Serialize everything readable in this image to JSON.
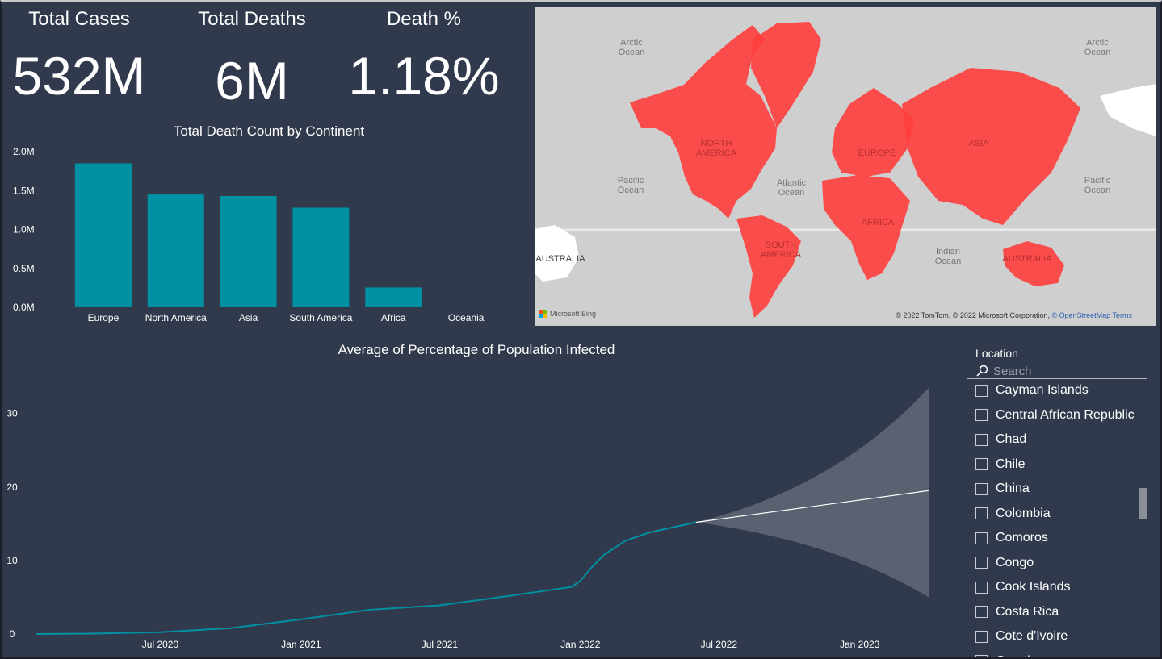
{
  "kpis": {
    "total_cases": {
      "title": "Total Cases",
      "value": "532M"
    },
    "total_deaths": {
      "title": "Total Deaths",
      "value": "6M"
    },
    "death_pct": {
      "title": "Death %",
      "value": "1.18%"
    }
  },
  "map": {
    "labels": {
      "arctic_ocean": "Arctic\nOcean",
      "pacific_ocean": "Pacific\nOcean",
      "atlantic_ocean": "Atlantic\nOcean",
      "indian_ocean": "Indian\nOcean",
      "north_america": "NORTH\nAMERICA",
      "south_america": "SOUTH\nAMERICA",
      "europe": "EUROPE",
      "asia": "ASIA",
      "africa": "AFRICA",
      "australia": "AUSTRALIA"
    },
    "bing_label": "Microsoft Bing",
    "credit": "© 2022 TomTom, © 2022 Microsoft Corporation,",
    "osm_link": "© OpenStreetMap",
    "terms_link": "Terms",
    "colors": {
      "water": "#cfcfcf",
      "land": "#ffffff",
      "highlight": "#ff3d3d"
    }
  },
  "slicer": {
    "title": "Location",
    "search_placeholder": "Search",
    "items": [
      "Cayman Islands",
      "Central African Republic",
      "Chad",
      "Chile",
      "China",
      "Colombia",
      "Comoros",
      "Congo",
      "Cook Islands",
      "Costa Rica",
      "Cote d'Ivoire",
      "Croatia"
    ]
  },
  "chart_data": [
    {
      "type": "bar",
      "title": "Total Death Count by Continent",
      "categories": [
        "Europe",
        "North America",
        "Asia",
        "South America",
        "Africa",
        "Oceania"
      ],
      "values": [
        1850000,
        1450000,
        1430000,
        1280000,
        255000,
        10000
      ],
      "ylim": [
        0,
        2000000
      ],
      "yticks": [
        0,
        500000,
        1000000,
        1500000,
        2000000
      ],
      "ytick_labels": [
        "0.0M",
        "0.5M",
        "1.0M",
        "1.5M",
        "2.0M"
      ],
      "color": "#0090a4",
      "grid": false
    },
    {
      "type": "line",
      "title": "Average of Percentage of Population Infected",
      "x": [
        "2020-01-20",
        "2020-04-01",
        "2020-07-01",
        "2020-10-01",
        "2021-01-01",
        "2021-04-01",
        "2021-07-01",
        "2021-10-01",
        "2021-12-20",
        "2022-01-01",
        "2022-01-15",
        "2022-02-01",
        "2022-03-01",
        "2022-04-01",
        "2022-05-01",
        "2022-06-01"
      ],
      "y": [
        0.0,
        0.05,
        0.25,
        0.8,
        2.0,
        3.3,
        3.9,
        5.2,
        6.4,
        7.2,
        9.0,
        10.8,
        12.7,
        13.8,
        14.5,
        15.2
      ],
      "forecast": {
        "x": [
          "2022-06-01",
          "2023-04-01"
        ],
        "y": [
          15.2,
          19.5
        ],
        "upper": [
          15.2,
          33.5
        ],
        "lower": [
          15.2,
          5.0
        ]
      },
      "xticks": [
        "2020-07-01",
        "2021-01-01",
        "2021-07-01",
        "2022-01-01",
        "2022-07-01",
        "2023-01-01"
      ],
      "xtick_labels": [
        "Jul 2020",
        "Jan 2021",
        "Jul 2021",
        "Jan 2022",
        "Jul 2022",
        "Jan 2023"
      ],
      "yticks": [
        0,
        10,
        20,
        30
      ],
      "ylim": [
        0,
        36
      ],
      "xlim": [
        "2020-01-20",
        "2023-04-01"
      ],
      "color": "#0090a4",
      "forecast_color": "#ffffff",
      "band_color": "#5a6170",
      "grid": false
    }
  ]
}
